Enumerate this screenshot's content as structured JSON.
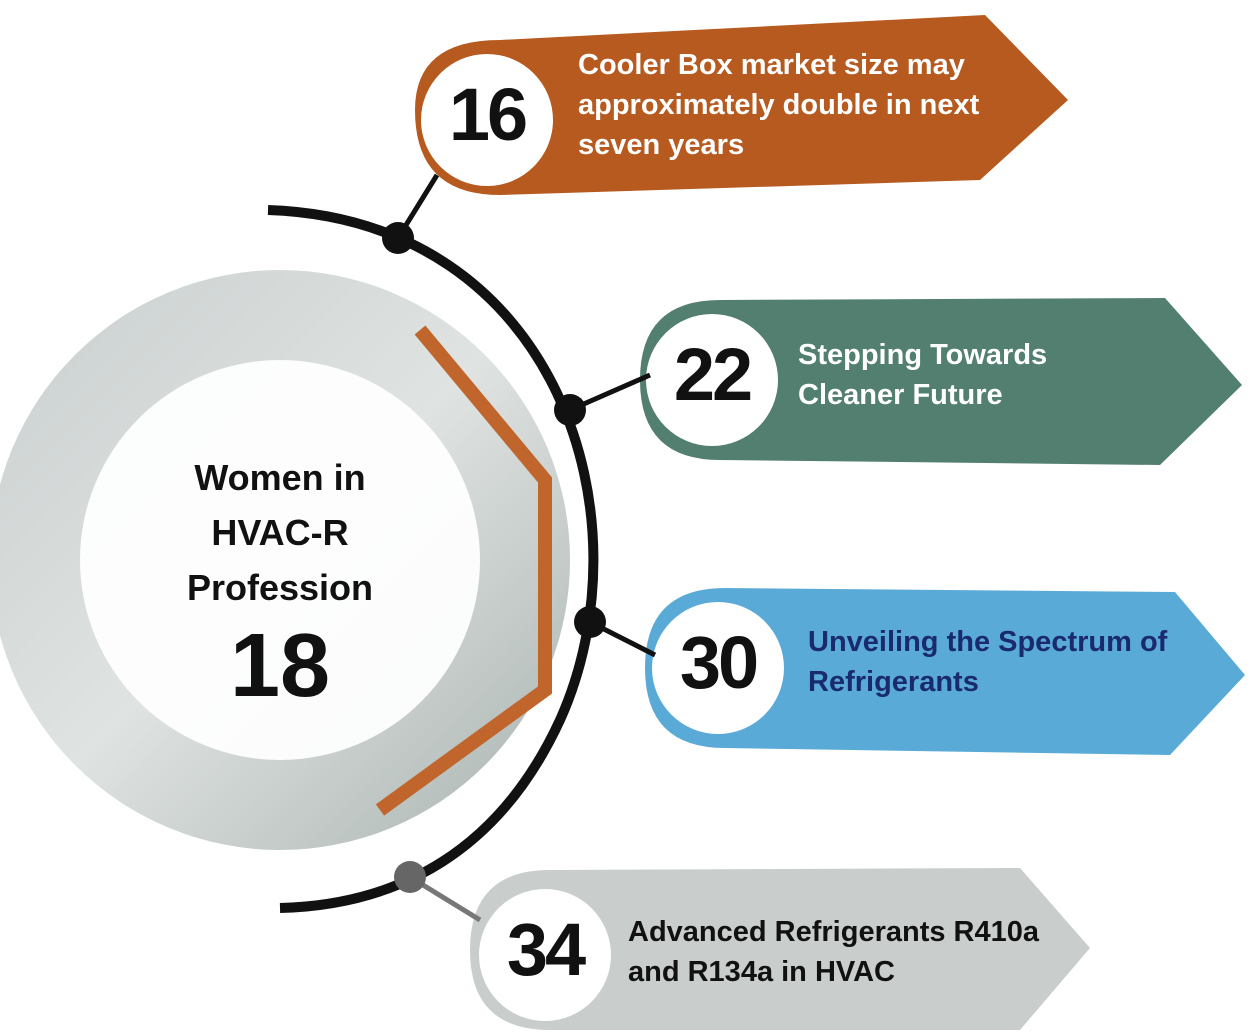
{
  "feature": {
    "title": "Women in HVAC-R Profession",
    "page": "18"
  },
  "items": [
    {
      "page": "16",
      "title": "Cooler Box market size may approximately double in next seven years"
    },
    {
      "page": "22",
      "title": "Stepping Towards Cleaner Future"
    },
    {
      "page": "30",
      "title": "Unveiling the Spectrum of Refrigerants"
    },
    {
      "page": "34",
      "title": "Advanced Refrigerants R410a and R134a in HVAC"
    }
  ]
}
